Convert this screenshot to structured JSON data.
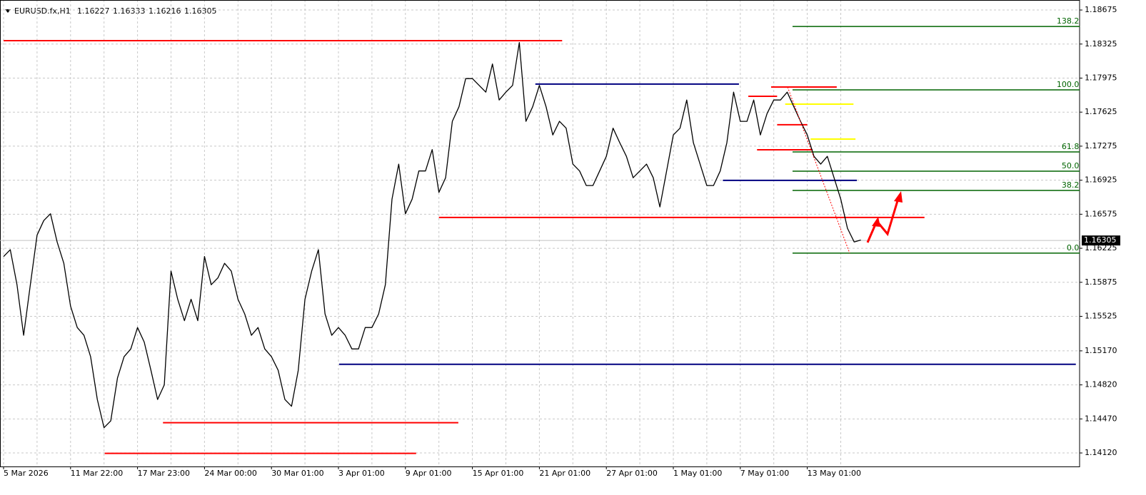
{
  "chart_data": {
    "type": "line",
    "symbol": "EURUSD.fx,H1",
    "ohlc": [
      1.16227,
      1.16333,
      1.16216,
      1.16305
    ],
    "color": "#000000",
    "categories": [
      "5 Mar 2026",
      null,
      null,
      null,
      null,
      null,
      null,
      null,
      null,
      null,
      "11 Mar 22:00",
      null,
      null,
      null,
      null,
      null,
      null,
      null,
      null,
      null,
      "17 Mar 23:00",
      null,
      null,
      null,
      null,
      null,
      null,
      null,
      null,
      null,
      "24 Mar 00:00",
      null,
      null,
      null,
      null,
      null,
      null,
      null,
      null,
      null,
      "30 Mar 01:00",
      null,
      null,
      null,
      null,
      null,
      null,
      null,
      null,
      null,
      "3 Apr 01:00",
      null,
      null,
      null,
      null,
      null,
      null,
      null,
      null,
      null,
      "9 Apr 01:00",
      null,
      null,
      null,
      null,
      null,
      null,
      null,
      null,
      null,
      "15 Apr 01:00",
      null,
      null,
      null,
      null,
      null,
      null,
      null,
      null,
      null,
      "21 Apr 01:00",
      null,
      null,
      null,
      null,
      null,
      null,
      null,
      null,
      null,
      "27 Apr 01:00",
      null,
      null,
      null,
      null,
      null,
      null,
      null,
      null,
      null,
      "1 May 01:00",
      null,
      null,
      null,
      null,
      null,
      null,
      null,
      null,
      null,
      "7 May 01:00",
      null,
      null,
      null,
      null,
      null,
      null,
      null,
      null,
      null,
      "13 May 01:00",
      null,
      null,
      null,
      null,
      null,
      null,
      null,
      null
    ],
    "values": [
      1.1614,
      1.1621,
      1.1585,
      1.1533,
      1.1585,
      1.1636,
      1.1651,
      1.1658,
      1.1629,
      1.1607,
      1.1563,
      1.1541,
      1.1533,
      1.1511,
      1.1467,
      1.1438,
      1.1445,
      1.1489,
      1.1511,
      1.1519,
      1.1541,
      1.1526,
      1.1497,
      1.1467,
      1.1482,
      1.1599,
      1.157,
      1.1548,
      1.157,
      1.1548,
      1.1614,
      1.1585,
      1.1592,
      1.1607,
      1.1599,
      1.157,
      1.1555,
      1.1533,
      1.1541,
      1.1519,
      1.1511,
      1.1497,
      1.1467,
      1.146,
      1.1497,
      1.157,
      1.1599,
      1.1621,
      1.1555,
      1.1533,
      1.1541,
      1.1533,
      1.1519,
      1.1519,
      1.1541,
      1.1541,
      1.1555,
      1.1585,
      1.1673,
      1.1709,
      1.1658,
      1.1673,
      1.1702,
      1.1702,
      1.1724,
      1.168,
      1.1695,
      1.1753,
      1.1768,
      1.1797,
      1.1797,
      1.179,
      1.1783,
      1.1812,
      1.1775,
      1.1783,
      1.179,
      1.1834,
      1.1753,
      1.1768,
      1.179,
      1.1768,
      1.1739,
      1.1753,
      1.1746,
      1.1709,
      1.1702,
      1.1687,
      1.1687,
      1.1702,
      1.1717,
      1.1746,
      1.1731,
      1.1717,
      1.1695,
      1.1702,
      1.1709,
      1.1695,
      1.1665,
      1.1702,
      1.1739,
      1.1746,
      1.1775,
      1.1731,
      1.1709,
      1.1687,
      1.1687,
      1.1702,
      1.1731,
      1.1783,
      1.1753,
      1.1753,
      1.1775,
      1.1739,
      1.1761,
      1.1775,
      1.1775,
      1.1783,
      1.1768,
      1.1753,
      1.1739,
      1.1717,
      1.1709,
      1.1717,
      1.1695,
      1.1673,
      1.1643,
      1.1629,
      1.1631
    ],
    "ylim": [
      1.13981,
      1.18778
    ],
    "yticks": [
      1.18675,
      1.18325,
      1.17975,
      1.17625,
      1.17275,
      1.16925,
      1.16575,
      1.16225,
      1.15875,
      1.15525,
      {
        "value": 1.1517,
        "label": "1.15170"
      },
      {
        "value": 1.1482,
        "label": "1.14820"
      },
      {
        "value": 1.1447,
        "label": "1.14470"
      },
      {
        "value": 1.1412,
        "label": "1.14120"
      }
    ],
    "grid": true,
    "hlines": [
      {
        "value": 1.1836,
        "from": 0,
        "to": 83.4,
        "color": "#ff0000"
      },
      {
        "value": 1.17913,
        "from": 79.4,
        "to": 109.8,
        "color": "#000080"
      },
      {
        "value": 1.16542,
        "from": 65,
        "to": 137.5,
        "color": "#ff0000"
      },
      {
        "value": 1.16923,
        "from": 107.4,
        "to": 127.4,
        "color": "#000080"
      },
      {
        "value": 1.15032,
        "from": 50.1,
        "to": 160.1,
        "color": "#000080"
      },
      {
        "value": 1.14431,
        "from": 23.8,
        "to": 67.9,
        "color": "#ff0000"
      },
      {
        "value": 1.14116,
        "from": 15.1,
        "to": 61.6,
        "color": "#ff0000"
      },
      {
        "value": 1.17788,
        "from": 111.2,
        "to": 115.5,
        "color": "#ff0000"
      },
      {
        "value": 1.17883,
        "from": 114.6,
        "to": 124.4,
        "color": "#ff0000"
      },
      {
        "value": 1.17495,
        "from": 115.5,
        "to": 120,
        "color": "#ff0000"
      },
      {
        "value": 1.17238,
        "from": 112.5,
        "to": 120.8,
        "color": "#ff0000"
      },
      {
        "value": 1.17707,
        "from": 116.7,
        "to": 126.9,
        "color": "#ffff00"
      },
      {
        "value": 1.17348,
        "from": 120.5,
        "to": 127.2,
        "color": "#ffff00"
      }
    ],
    "fibo": {
      "from": 117.8,
      "to": 160.7,
      "color": "#006400",
      "levels": [
        {
          "level": "138.2",
          "price": 1.18506
        },
        {
          "level": "100.0",
          "price": 1.17854
        },
        {
          "level": "61.8",
          "price": 1.17216
        },
        {
          "level": "50.0",
          "price": 1.17018
        },
        {
          "level": "38.2",
          "price": 1.1682
        },
        {
          "level": "0.0",
          "price": 1.16175
        }
      ]
    }
  }
}
